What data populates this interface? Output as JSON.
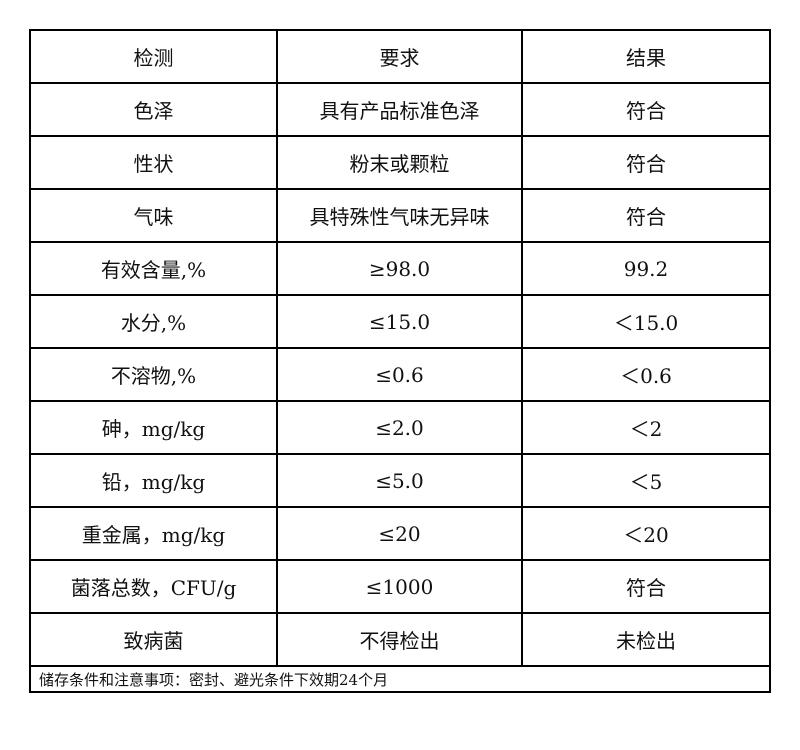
{
  "table": {
    "headers": [
      "检测",
      "要求",
      "结果"
    ],
    "rows": [
      [
        "色泽",
        "具有产品标准色泽",
        "符合"
      ],
      [
        "性状",
        "粉末或颗粒",
        "符合"
      ],
      [
        "气味",
        "具特殊性气味无异味",
        "符合"
      ],
      [
        "有效含量,%",
        "≥98.0",
        "99.2"
      ],
      [
        "水分,%",
        "≤15.0",
        "＜15.0"
      ],
      [
        "不溶物,%",
        "≤0.6",
        "＜0.6"
      ],
      [
        "砷，mg/kg",
        "≤2.0",
        "＜2"
      ],
      [
        "铅，mg/kg",
        "≤5.0",
        "＜5"
      ],
      [
        "重金属，mg/kg",
        "≤20",
        "＜20"
      ],
      [
        "菌落总数，CFU/g",
        "≤1000",
        "符合"
      ],
      [
        "致病菌",
        "不得检出",
        "未检出"
      ]
    ],
    "footer": "储存条件和注意事项：密封、避光条件下效期24个月"
  }
}
